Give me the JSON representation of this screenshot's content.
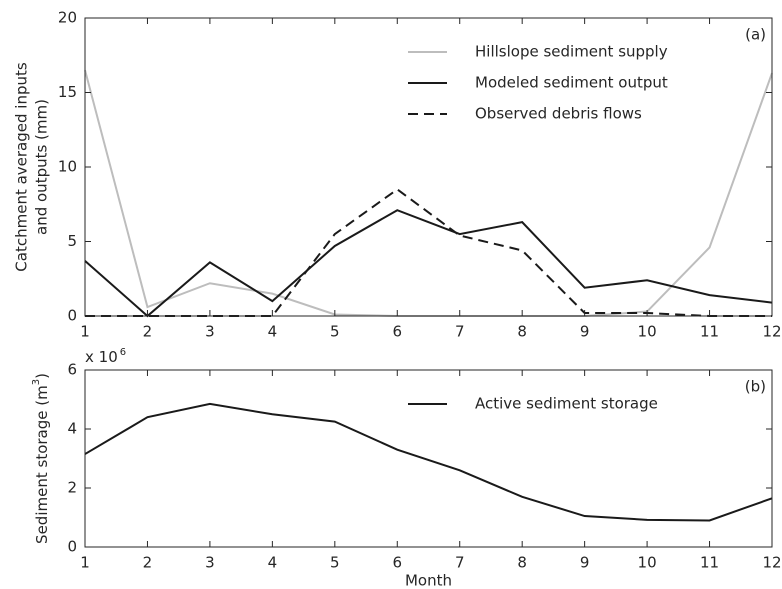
{
  "chart_data": [
    {
      "type": "line",
      "panel_label": "(a)",
      "ylabel_lines": [
        "Catchment averaged inputs",
        "and outputs (mm)"
      ],
      "x": [
        1,
        2,
        3,
        4,
        5,
        6,
        7,
        8,
        9,
        10,
        11,
        12
      ],
      "xlim": [
        1,
        12
      ],
      "xticks": [
        1,
        2,
        3,
        4,
        5,
        6,
        7,
        8,
        9,
        10,
        11,
        12
      ],
      "ylim": [
        0,
        20
      ],
      "yticks": [
        0,
        5,
        10,
        15,
        20
      ],
      "legend": "upper right",
      "series": [
        {
          "name": "Hillslope sediment supply",
          "color": "#bdbdbd",
          "linestyle": "solid",
          "values": [
            16.5,
            0.6,
            2.2,
            1.5,
            0.1,
            0,
            0,
            0,
            0,
            0.3,
            4.6,
            16.3
          ]
        },
        {
          "name": "Modeled sediment output",
          "color": "#1a1a1a",
          "linestyle": "solid",
          "values": [
            3.7,
            0,
            3.6,
            1.0,
            4.7,
            7.1,
            5.5,
            6.3,
            1.9,
            2.4,
            1.4,
            0.9
          ]
        },
        {
          "name": "Observed debris flows",
          "color": "#1a1a1a",
          "linestyle": "dashed",
          "values": [
            0,
            0,
            0,
            0,
            5.5,
            8.5,
            5.4,
            4.4,
            0.2,
            0.2,
            0,
            0
          ]
        }
      ]
    },
    {
      "type": "line",
      "panel_label": "(b)",
      "ylabel_parts": [
        "Sediment storage (m",
        "3",
        ")"
      ],
      "multiplier_parts": [
        "x 10",
        "6"
      ],
      "xlabel": "Month",
      "x": [
        1,
        2,
        3,
        4,
        5,
        6,
        7,
        8,
        9,
        10,
        11,
        12
      ],
      "xlim": [
        1,
        12
      ],
      "xticks": [
        1,
        2,
        3,
        4,
        5,
        6,
        7,
        8,
        9,
        10,
        11,
        12
      ],
      "ylim": [
        0,
        6
      ],
      "yticks": [
        0,
        2,
        4,
        6
      ],
      "legend": "upper right",
      "series": [
        {
          "name": "Active sediment storage",
          "color": "#1a1a1a",
          "linestyle": "solid",
          "values": [
            3.15,
            4.4,
            4.85,
            4.5,
            4.25,
            3.3,
            2.6,
            1.7,
            1.05,
            0.92,
            0.9,
            1.65
          ]
        }
      ]
    }
  ]
}
